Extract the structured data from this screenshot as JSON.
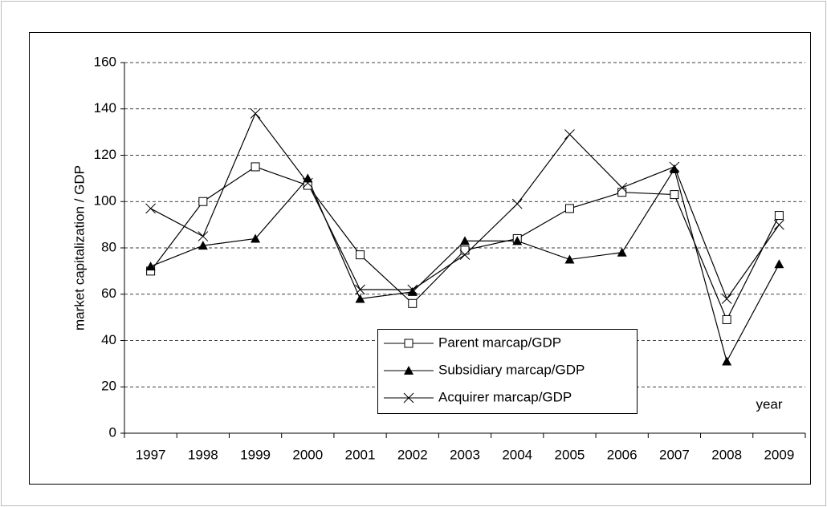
{
  "chart_data": {
    "type": "line",
    "y_label": "market capitalization / GDP",
    "x_label": "year",
    "categories": [
      "1997",
      "1998",
      "1999",
      "2000",
      "2001",
      "2002",
      "2003",
      "2004",
      "2005",
      "2006",
      "2007",
      "2008",
      "2009"
    ],
    "series": [
      {
        "name": "Parent marcap/GDP",
        "color": "#000000",
        "marker": "square",
        "values": [
          70,
          100,
          115,
          107,
          77,
          56,
          79,
          84,
          97,
          104,
          103,
          49,
          94
        ]
      },
      {
        "name": "Subsidiary marcap/GDP",
        "color": "#000000",
        "marker": "triangle",
        "values": [
          72,
          81,
          84,
          110,
          58,
          61,
          83,
          83,
          75,
          78,
          114,
          31,
          73
        ]
      },
      {
        "name": "Acquirer marcap/GDP",
        "color": "#000000",
        "marker": "x",
        "values": [
          97,
          85,
          138,
          108,
          62,
          62,
          77,
          99,
          129,
          106,
          115,
          58,
          90
        ]
      }
    ],
    "ylim": [
      0,
      160
    ],
    "yticks": [
      0,
      20,
      40,
      60,
      80,
      100,
      120,
      140,
      160
    ],
    "grid": true
  }
}
